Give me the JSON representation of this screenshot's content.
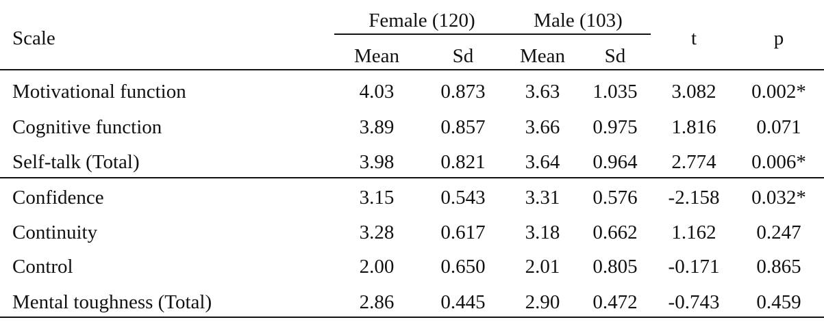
{
  "header": {
    "scale": "Scale",
    "female_group": "Female (120)",
    "male_group": "Male (103)",
    "t": "t",
    "p": "p",
    "mean": "Mean",
    "sd": "Sd"
  },
  "rows": [
    {
      "scale": "Motivational function",
      "f_mean": "4.03",
      "f_sd": "0.873",
      "m_mean": "3.63",
      "m_sd": "1.035",
      "t": "3.082",
      "p": "0.002*"
    },
    {
      "scale": "Cognitive function",
      "f_mean": "3.89",
      "f_sd": "0.857",
      "m_mean": "3.66",
      "m_sd": "0.975",
      "t": "1.816",
      "p": "0.071"
    },
    {
      "scale": "Self-talk (Total)",
      "f_mean": "3.98",
      "f_sd": "0.821",
      "m_mean": "3.64",
      "m_sd": "0.964",
      "t": "2.774",
      "p": "0.006*"
    },
    {
      "scale": "Confidence",
      "f_mean": "3.15",
      "f_sd": "0.543",
      "m_mean": "3.31",
      "m_sd": "0.576",
      "t": "-2.158",
      "p": "0.032*"
    },
    {
      "scale": "Continuity",
      "f_mean": "3.28",
      "f_sd": "0.617",
      "m_mean": "3.18",
      "m_sd": "0.662",
      "t": "1.162",
      "p": "0.247"
    },
    {
      "scale": "Control",
      "f_mean": "2.00",
      "f_sd": "0.650",
      "m_mean": "2.01",
      "m_sd": "0.805",
      "t": "-0.171",
      "p": "0.865"
    },
    {
      "scale": "Mental toughness (Total)",
      "f_mean": "2.86",
      "f_sd": "0.445",
      "m_mean": "2.90",
      "m_sd": "0.472",
      "t": "-0.743",
      "p": "0.459"
    }
  ]
}
